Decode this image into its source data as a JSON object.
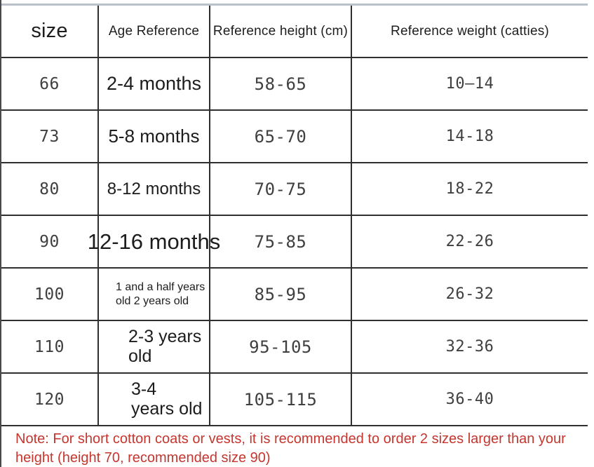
{
  "table": {
    "headers": [
      "size",
      "Age Reference",
      "Reference height (cm)",
      "Reference weight (catties)"
    ],
    "rows": [
      {
        "size": "66",
        "age": "2-4 months",
        "height": "58-65",
        "weight": "10—14"
      },
      {
        "size": "73",
        "age": "5-8 months",
        "height": "65-70",
        "weight": "14-18"
      },
      {
        "size": "80",
        "age": "8-12 months",
        "height": "70-75",
        "weight": "18-22"
      },
      {
        "size": "90",
        "age": "12-16 months",
        "height": "75-85",
        "weight": "22-26"
      },
      {
        "size": "100",
        "age": "1 and a half years\nold 2 years old",
        "height": "85-95",
        "weight": "26-32"
      },
      {
        "size": "110",
        "age": "2-3 years\nold",
        "height": "95-105",
        "weight": "32-36"
      },
      {
        "size": "120",
        "age": "3-4\nyears old",
        "height": "105-115",
        "weight": "36-40"
      }
    ]
  },
  "note": {
    "text": "Note: For short cotton coats or vests, it is recommended to order 2 sizes larger than your\nheight (height 70, recommended size 90)"
  },
  "colors": {
    "note_red": "#c5362e",
    "grid_dark": "#2f2f2f",
    "grid_light_top": "#b9c0c7"
  }
}
